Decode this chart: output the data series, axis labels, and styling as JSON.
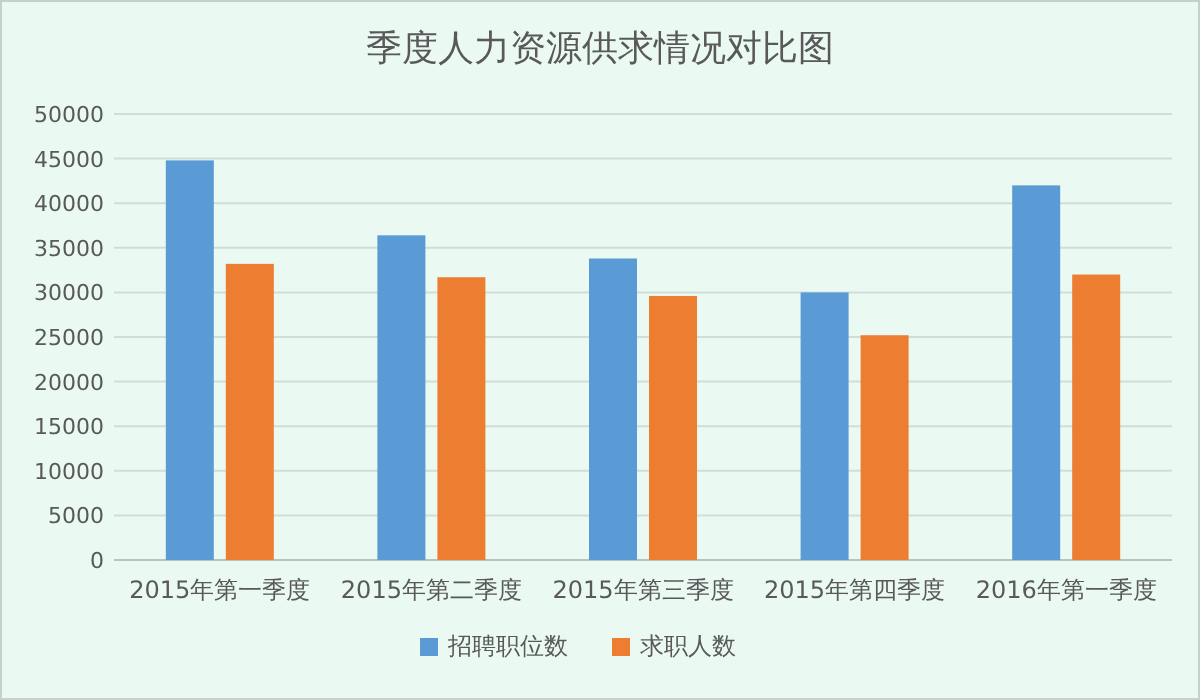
{
  "chart_data": {
    "type": "bar",
    "title": "季度人力资源供求情况对比图",
    "categories": [
      "2015年第一季度",
      "2015年第二季度",
      "2015年第三季度",
      "2015年第四季度",
      "2016年第一季度"
    ],
    "series": [
      {
        "name": "招聘职位数",
        "color": "#5b9bd5",
        "values": [
          44800,
          36400,
          33800,
          30000,
          42000
        ]
      },
      {
        "name": "求职人数",
        "color": "#ed7d31",
        "values": [
          33200,
          31700,
          29600,
          25200,
          32000
        ]
      }
    ],
    "ylim": [
      0,
      50000
    ],
    "yticks": [
      0,
      5000,
      10000,
      15000,
      20000,
      25000,
      30000,
      35000,
      40000,
      45000,
      50000
    ],
    "grid": "y",
    "legend": "bottom"
  }
}
